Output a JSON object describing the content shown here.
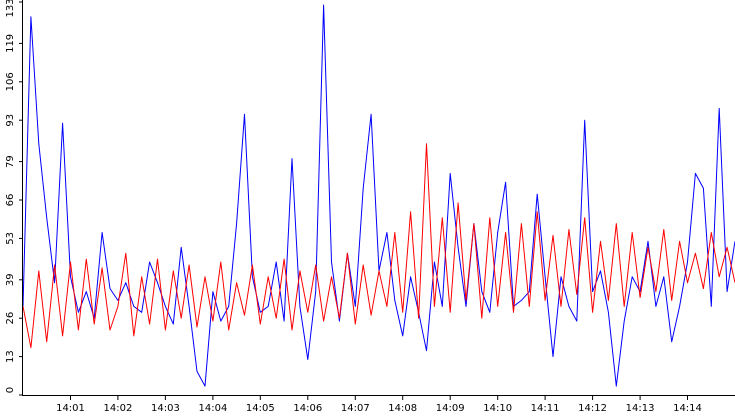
{
  "chart_data": {
    "type": "line",
    "title": "",
    "xlabel": "",
    "ylabel": "",
    "grid": false,
    "legend": "none",
    "x_range": [
      "14:00:00",
      "14:15:00"
    ],
    "ylim": [
      0,
      133
    ],
    "y_ticks": [
      "0",
      "13",
      "26",
      "39",
      "53",
      "66",
      "79",
      "93",
      "106",
      "119",
      "133"
    ],
    "x_ticks": [
      "14:01",
      "14:02",
      "14:03",
      "14:04",
      "14:05",
      "14:06",
      "14:07",
      "14:08",
      "14:09",
      "14:10",
      "14:11",
      "14:12",
      "14:13",
      "14:14"
    ],
    "series": [
      {
        "color": "#0000ff",
        "x": [
          "14:00:00",
          "14:00:10",
          "14:00:20",
          "14:00:30",
          "14:00:40",
          "14:00:50",
          "14:01:00",
          "14:01:10",
          "14:01:20",
          "14:01:30",
          "14:01:40",
          "14:01:50",
          "14:02:00",
          "14:02:10",
          "14:02:20",
          "14:02:30",
          "14:02:40",
          "14:02:50",
          "14:03:00",
          "14:03:10",
          "14:03:20",
          "14:03:30",
          "14:03:40",
          "14:03:50",
          "14:04:00",
          "14:04:10",
          "14:04:20",
          "14:04:30",
          "14:04:40",
          "14:04:50",
          "14:05:00",
          "14:05:10",
          "14:05:20",
          "14:05:30",
          "14:05:40",
          "14:05:50",
          "14:06:00",
          "14:06:10",
          "14:06:20",
          "14:06:30",
          "14:06:40",
          "14:06:50",
          "14:07:00",
          "14:07:10",
          "14:07:20",
          "14:07:30",
          "14:07:40",
          "14:07:50",
          "14:08:00",
          "14:08:10",
          "14:08:20",
          "14:08:30",
          "14:08:40",
          "14:08:50",
          "14:09:00",
          "14:09:10",
          "14:09:20",
          "14:09:30",
          "14:09:40",
          "14:09:50",
          "14:10:00",
          "14:10:10",
          "14:10:20",
          "14:10:30",
          "14:10:40",
          "14:10:50",
          "14:11:00",
          "14:11:10",
          "14:11:20",
          "14:11:30",
          "14:11:40",
          "14:11:50",
          "14:12:00",
          "14:12:10",
          "14:12:20",
          "14:12:30",
          "14:12:40",
          "14:12:50",
          "14:13:00",
          "14:13:10",
          "14:13:20",
          "14:13:30",
          "14:13:40",
          "14:13:50",
          "14:14:00",
          "14:14:10",
          "14:14:20",
          "14:14:30",
          "14:14:40",
          "14:14:50",
          "14:15:00"
        ],
        "values": [
          30,
          128,
          85,
          60,
          38,
          92,
          40,
          28,
          35,
          26,
          55,
          36,
          32,
          38,
          30,
          28,
          45,
          38,
          30,
          24,
          50,
          30,
          8,
          3,
          35,
          25,
          30,
          58,
          95,
          40,
          28,
          30,
          45,
          25,
          80,
          30,
          12,
          35,
          132,
          45,
          25,
          48,
          30,
          70,
          95,
          42,
          55,
          32,
          20,
          40,
          28,
          15,
          45,
          30,
          75,
          50,
          30,
          58,
          35,
          28,
          55,
          72,
          30,
          32,
          35,
          68,
          40,
          13,
          40,
          30,
          25,
          93,
          35,
          42,
          28,
          3,
          25,
          40,
          35,
          52,
          30,
          40,
          18,
          30,
          45,
          75,
          70,
          30,
          97,
          35,
          52
        ]
      },
      {
        "color": "#ff0000",
        "x": [
          "14:00:00",
          "14:00:10",
          "14:00:20",
          "14:00:30",
          "14:00:40",
          "14:00:50",
          "14:01:00",
          "14:01:10",
          "14:01:20",
          "14:01:30",
          "14:01:40",
          "14:01:50",
          "14:02:00",
          "14:02:10",
          "14:02:20",
          "14:02:30",
          "14:02:40",
          "14:02:50",
          "14:03:00",
          "14:03:10",
          "14:03:20",
          "14:03:30",
          "14:03:40",
          "14:03:50",
          "14:04:00",
          "14:04:10",
          "14:04:20",
          "14:04:30",
          "14:04:40",
          "14:04:50",
          "14:05:00",
          "14:05:10",
          "14:05:20",
          "14:05:30",
          "14:05:40",
          "14:05:50",
          "14:06:00",
          "14:06:10",
          "14:06:20",
          "14:06:30",
          "14:06:40",
          "14:06:50",
          "14:07:00",
          "14:07:10",
          "14:07:20",
          "14:07:30",
          "14:07:40",
          "14:07:50",
          "14:08:00",
          "14:08:10",
          "14:08:20",
          "14:08:30",
          "14:08:40",
          "14:08:50",
          "14:09:00",
          "14:09:10",
          "14:09:20",
          "14:09:30",
          "14:09:40",
          "14:09:50",
          "14:10:00",
          "14:10:10",
          "14:10:20",
          "14:10:30",
          "14:10:40",
          "14:10:50",
          "14:11:00",
          "14:11:10",
          "14:11:20",
          "14:11:30",
          "14:11:40",
          "14:11:50",
          "14:12:00",
          "14:12:10",
          "14:12:20",
          "14:12:30",
          "14:12:40",
          "14:12:50",
          "14:13:00",
          "14:13:10",
          "14:13:20",
          "14:13:30",
          "14:13:40",
          "14:13:50",
          "14:14:00",
          "14:14:10",
          "14:14:20",
          "14:14:30",
          "14:14:40",
          "14:14:50",
          "14:15:00"
        ],
        "values": [
          30,
          16,
          42,
          18,
          44,
          20,
          45,
          22,
          46,
          24,
          43,
          22,
          30,
          48,
          20,
          40,
          24,
          46,
          22,
          42,
          26,
          44,
          23,
          40,
          25,
          45,
          22,
          38,
          27,
          44,
          24,
          40,
          26,
          46,
          22,
          42,
          28,
          44,
          25,
          40,
          26,
          48,
          24,
          44,
          27,
          42,
          30,
          55,
          28,
          62,
          26,
          85,
          30,
          60,
          28,
          65,
          32,
          58,
          26,
          60,
          30,
          55,
          28,
          58,
          30,
          62,
          32,
          54,
          30,
          56,
          34,
          60,
          28,
          52,
          32,
          58,
          30,
          55,
          33,
          50,
          35,
          56,
          32,
          52,
          38,
          48,
          36,
          55,
          40,
          50,
          38
        ]
      }
    ]
  }
}
